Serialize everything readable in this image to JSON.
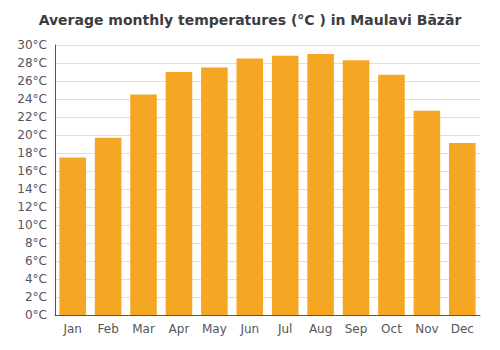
{
  "chart_data": {
    "type": "bar",
    "title": "Average monthly temperatures (°C ) in Maulavi Bāzār",
    "categories": [
      "Jan",
      "Feb",
      "Mar",
      "Apr",
      "May",
      "Jun",
      "Jul",
      "Aug",
      "Sep",
      "Oct",
      "Nov",
      "Dec"
    ],
    "values": [
      17.5,
      19.7,
      24.5,
      27.0,
      27.5,
      28.5,
      28.8,
      29.0,
      28.3,
      26.7,
      22.7,
      19.1
    ],
    "color": "#F5A623",
    "ylim": [
      0,
      30
    ],
    "yticks": [
      {
        "value": 0,
        "label": "0°C"
      },
      {
        "value": 2,
        "label": "2°C"
      },
      {
        "value": 4,
        "label": "4°C"
      },
      {
        "value": 6,
        "label": "6°C"
      },
      {
        "value": 8,
        "label": "8°C"
      },
      {
        "value": 10,
        "label": "10°C"
      },
      {
        "value": 12,
        "label": "12°C"
      },
      {
        "value": 14,
        "label": "14°C"
      },
      {
        "value": 16,
        "label": "16°C"
      },
      {
        "value": 18,
        "label": "18°C"
      },
      {
        "value": 20,
        "label": "20°C"
      },
      {
        "value": 22,
        "label": "22°C"
      },
      {
        "value": 24,
        "label": "24°C"
      },
      {
        "value": 26,
        "label": "26°C"
      },
      {
        "value": 28,
        "label": "28°C"
      },
      {
        "value": 30,
        "label": "30°C"
      }
    ],
    "grid": true
  }
}
